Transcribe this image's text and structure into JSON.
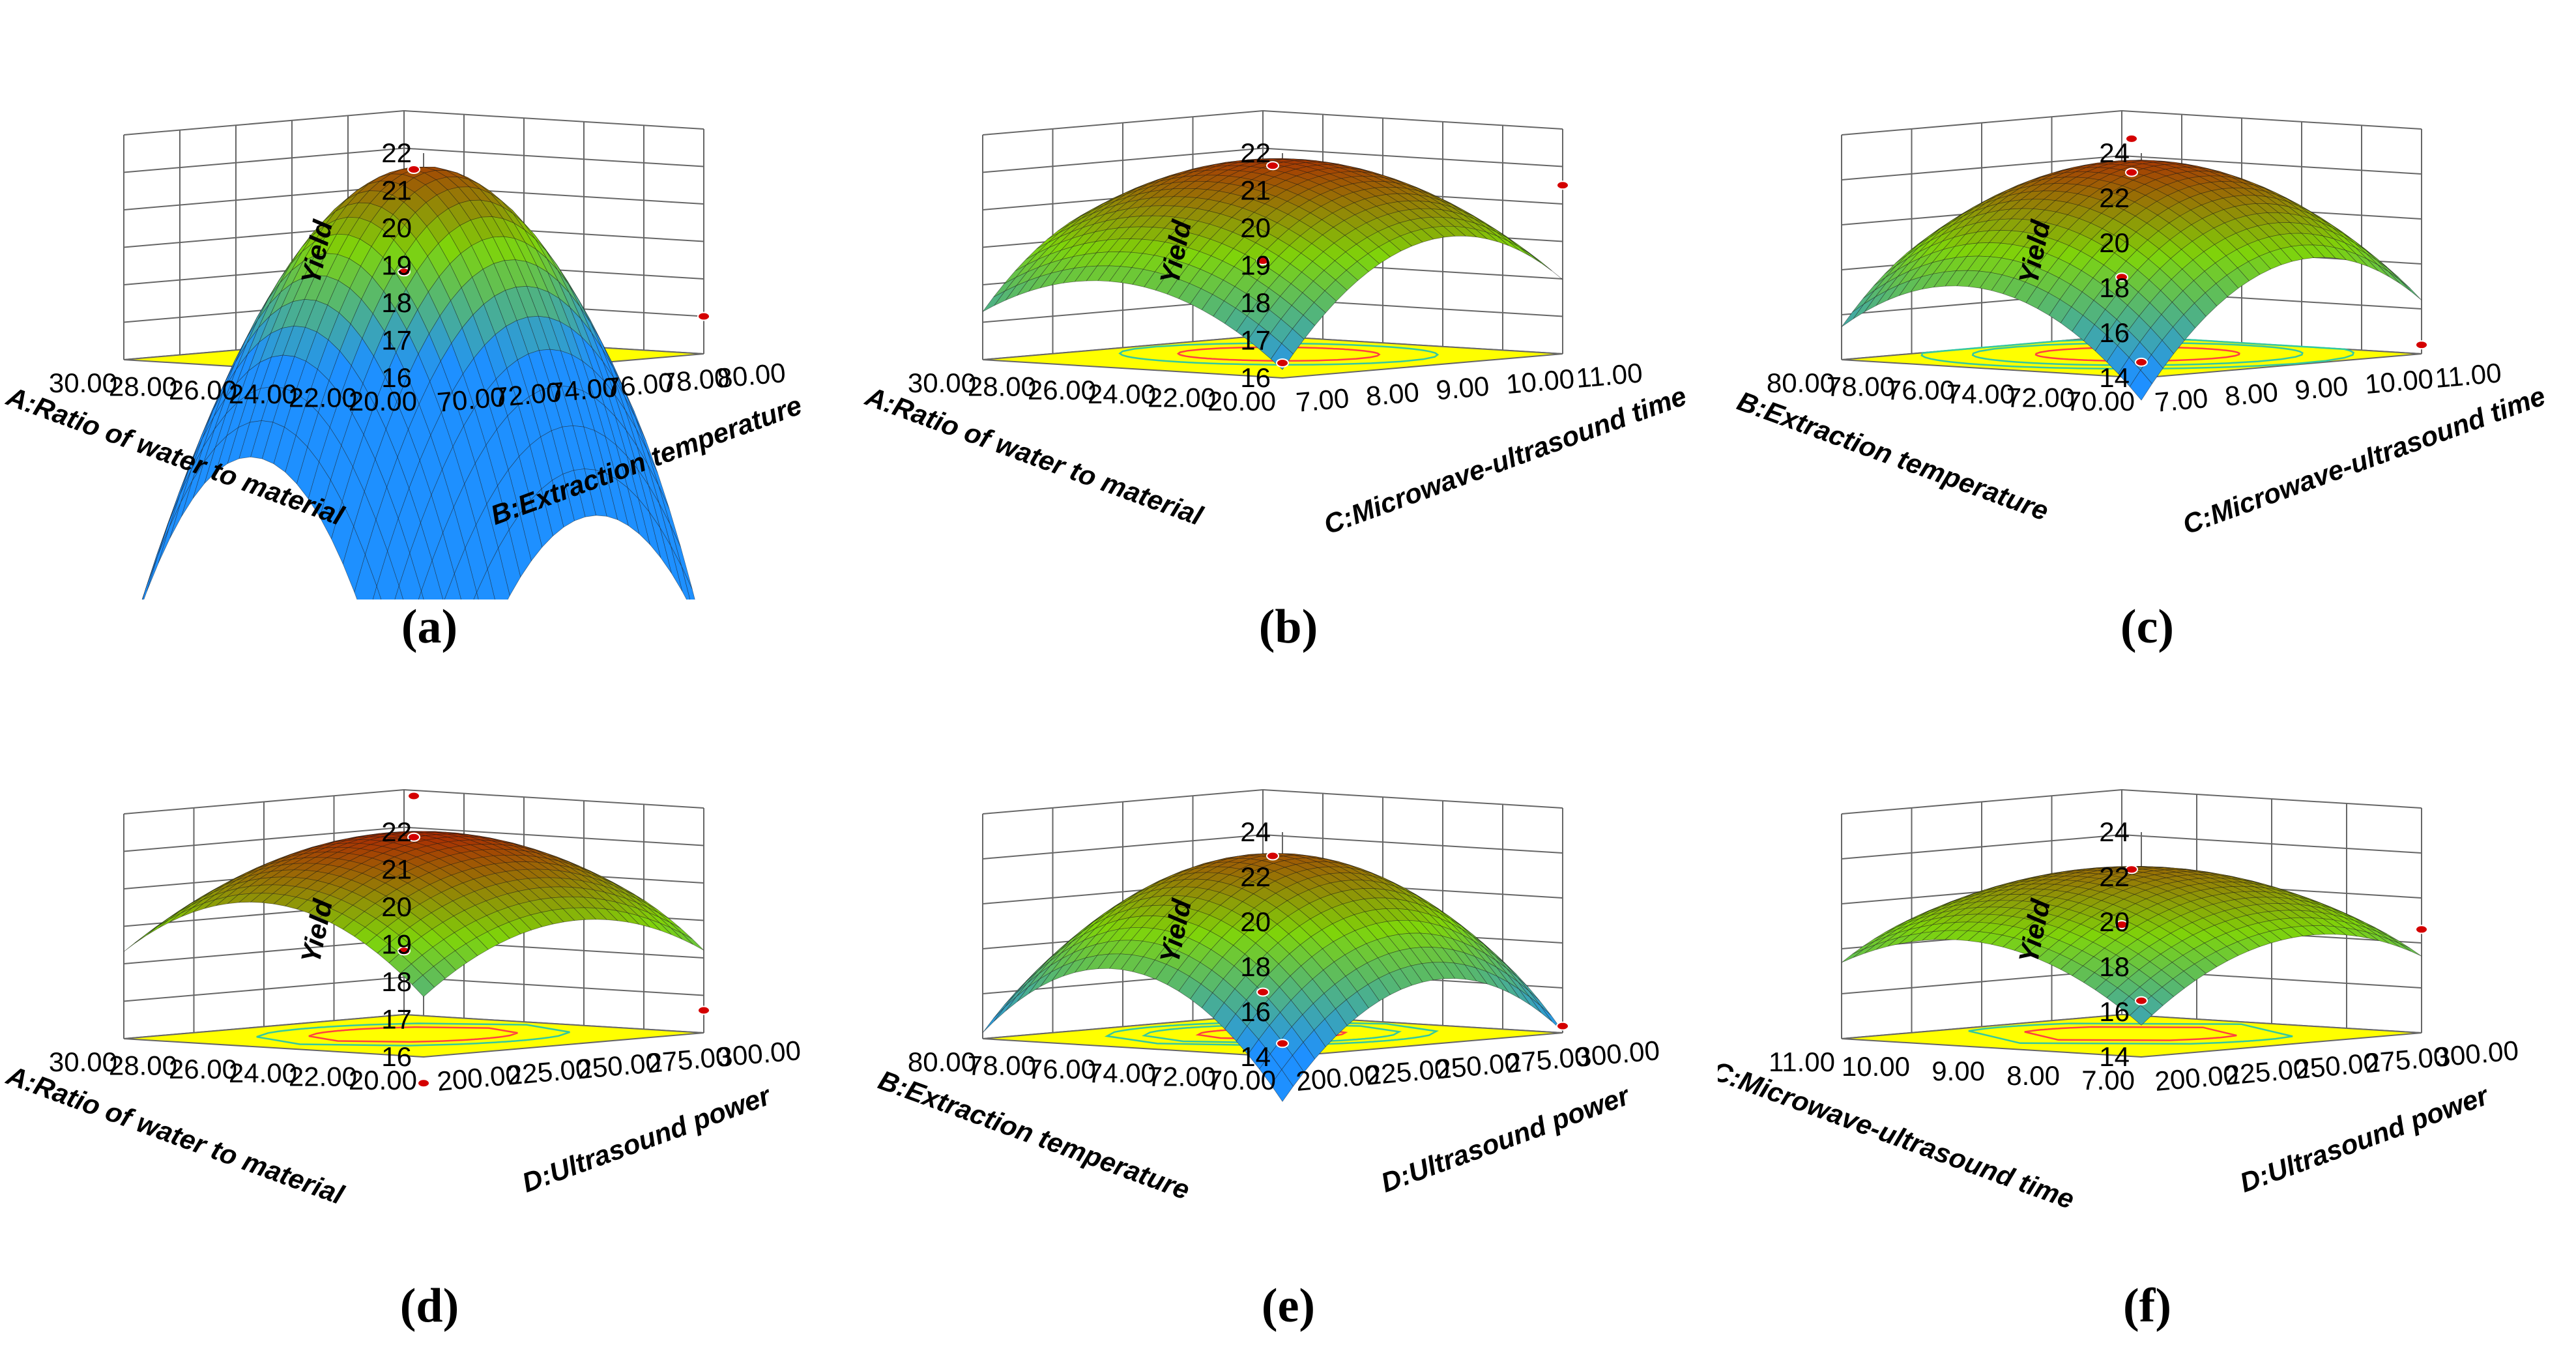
{
  "chart_data": [
    {
      "panel": "(a)",
      "type": "surface3d",
      "zlabel": "Yield",
      "xlabel": "A:Ratio of water to material",
      "xlim": [
        20,
        30
      ],
      "xticks": [
        "20.00",
        "22.00",
        "24.00",
        "26.00",
        "28.00",
        "30.00"
      ],
      "ylabel": "B:Extraction temperature",
      "ylim": [
        70,
        80
      ],
      "yticks": [
        "70.00",
        "72.00",
        "74.00",
        "76.00",
        "78.00",
        "80.00"
      ],
      "zlim": [
        16,
        22
      ],
      "zticks": [
        "16",
        "17",
        "18",
        "19",
        "20",
        "21",
        "22"
      ],
      "surface": {
        "peak": 21.0,
        "x0": 25.5,
        "y0": 75.8,
        "ax": 0.3,
        "ay": 0.22,
        "bxy": 0.02
      },
      "design_points": [
        [
          25,
          75,
          21.0
        ],
        [
          20,
          80,
          17.0
        ],
        [
          30,
          80,
          17.7
        ]
      ],
      "contours": [
        20.4,
        19.6
      ]
    },
    {
      "panel": "(b)",
      "type": "surface3d",
      "zlabel": "Yield",
      "xlabel": "A:Ratio of water to material",
      "xlim": [
        20,
        30
      ],
      "xticks": [
        "20.00",
        "22.00",
        "24.00",
        "26.00",
        "28.00",
        "30.00"
      ],
      "ylabel": "C:Microwave-ultrasound time",
      "ylim": [
        7,
        11
      ],
      "yticks": [
        "7.00",
        "8.00",
        "9.00",
        "10.00",
        "11.00"
      ],
      "zlim": [
        16,
        22
      ],
      "zticks": [
        "16",
        "17",
        "18",
        "19",
        "20",
        "21",
        "22"
      ],
      "surface": {
        "peak": 21.2,
        "x0": 25.5,
        "y0": 9.3,
        "ax": 0.06,
        "ay": 0.55,
        "bxy": 0.02
      },
      "design_points": [
        [
          25,
          9,
          21.1
        ],
        [
          20,
          11,
          20.5
        ],
        [
          30,
          11,
          18.0
        ],
        [
          20,
          7,
          16.4
        ]
      ],
      "contours": [
        20.8,
        20.2
      ]
    },
    {
      "panel": "(c)",
      "type": "surface3d",
      "zlabel": "Yield",
      "xlabel": "B:Extraction temperature",
      "xlim": [
        70,
        80
      ],
      "xticks": [
        "70.00",
        "72.00",
        "74.00",
        "76.00",
        "78.00",
        "80.00"
      ],
      "ylabel": "C:Microwave-ultrasound time",
      "ylim": [
        7,
        11
      ],
      "yticks": [
        "7.00",
        "8.00",
        "9.00",
        "10.00",
        "11.00"
      ],
      "zlim": [
        14,
        24
      ],
      "zticks": [
        "14",
        "16",
        "18",
        "20",
        "22",
        "24"
      ],
      "surface": {
        "peak": 22.6,
        "x0": 75.5,
        "y0": 9.3,
        "ax": 0.13,
        "ay": 0.95,
        "bxy": 0.05
      },
      "design_points": [
        [
          75,
          9,
          22.2
        ],
        [
          75,
          9,
          23.7
        ],
        [
          70,
          11,
          14.4
        ],
        [
          80,
          11,
          16.6
        ],
        [
          70,
          7,
          14.7
        ]
      ],
      "contours": [
        21.8,
        20.5,
        19.0
      ]
    },
    {
      "panel": "(d)",
      "type": "surface3d",
      "zlabel": "Yield",
      "xlabel": "A:Ratio of water to material",
      "xlim": [
        20,
        30
      ],
      "xticks": [
        "20.00",
        "22.00",
        "24.00",
        "26.00",
        "28.00",
        "30.00"
      ],
      "ylabel": "D:Ultrasound power",
      "ylim": [
        200,
        300
      ],
      "yticks": [
        "200.00",
        "225.00",
        "250.00",
        "275.00",
        "300.00"
      ],
      "zlim": [
        16,
        22
      ],
      "zticks": [
        "16",
        "17",
        "18",
        "19",
        "20",
        "21",
        "22"
      ],
      "surface": {
        "peak": 21.4,
        "x0": 25.3,
        "y0": 253,
        "ax": 0.075,
        "ay": 0.00055,
        "bxy": 0.0005
      },
      "design_points": [
        [
          25,
          250,
          21.3
        ],
        [
          25,
          250,
          22.4
        ],
        [
          20,
          300,
          16.6
        ],
        [
          30,
          300,
          17.7
        ],
        [
          20,
          200,
          15.3
        ]
      ],
      "contours": [
        21.0,
        20.5
      ]
    },
    {
      "panel": "(e)",
      "type": "surface3d",
      "zlabel": "Yield",
      "xlabel": "B:Extraction temperature",
      "xlim": [
        70,
        80
      ],
      "xticks": [
        "70.00",
        "72.00",
        "74.00",
        "76.00",
        "78.00",
        "80.00"
      ],
      "ylabel": "D:Ultrasound power",
      "ylim": [
        200,
        300
      ],
      "yticks": [
        "200.00",
        "225.00",
        "250.00",
        "275.00",
        "300.00"
      ],
      "zlim": [
        14,
        24
      ],
      "zticks": [
        "14",
        "16",
        "18",
        "20",
        "22",
        "24"
      ],
      "surface": {
        "peak": 22.0,
        "x0": 75.5,
        "y0": 255,
        "ax": 0.17,
        "ay": 0.0015,
        "bxy": 0.001
      },
      "design_points": [
        [
          75,
          250,
          22.0
        ],
        [
          70,
          300,
          14.3
        ],
        [
          80,
          300,
          15.0
        ],
        [
          70,
          200,
          14.6
        ]
      ],
      "contours": [
        21.5,
        20.5,
        19.5
      ]
    },
    {
      "panel": "(f)",
      "type": "surface3d",
      "zlabel": "Yield",
      "xlabel": "C:Microwave-ultrasound time",
      "xlim": [
        7,
        11
      ],
      "xticks": [
        "7.00",
        "8.00",
        "9.00",
        "10.00",
        "11.00"
      ],
      "ylabel": "D:Ultrasound power",
      "ylim": [
        200,
        300
      ],
      "yticks": [
        "200.00",
        "225.00",
        "250.00",
        "275.00",
        "300.00"
      ],
      "zlim": [
        14,
        24
      ],
      "zticks": [
        "14",
        "16",
        "18",
        "20",
        "22",
        "24"
      ],
      "surface": {
        "peak": 21.4,
        "x0": 9.2,
        "y0": 255,
        "ax": 0.55,
        "ay": 0.0009,
        "bxy": 0.005
      },
      "design_points": [
        [
          9,
          250,
          21.4
        ],
        [
          7,
          300,
          18.6
        ],
        [
          11,
          300,
          18.0
        ],
        [
          7,
          200,
          16.5
        ]
      ],
      "contours": [
        20.8,
        20.0
      ]
    }
  ],
  "colors": {
    "floor": "#ffff00",
    "low": "#1e90ff",
    "mid": "#7fd40a",
    "high": "#b50000",
    "contour_inner": "#ff4040",
    "contour_outer": "#33c8a0",
    "frame": "#666666"
  }
}
